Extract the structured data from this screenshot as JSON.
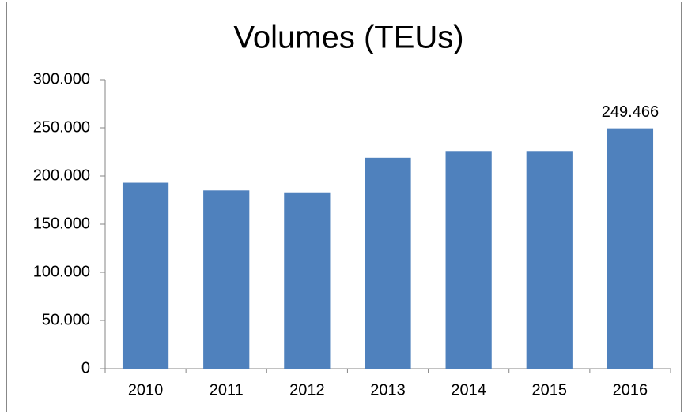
{
  "chart_data": {
    "type": "bar",
    "title": "Volumes (TEUs)",
    "categories": [
      "2010",
      "2011",
      "2012",
      "2013",
      "2014",
      "2015",
      "2016"
    ],
    "values": [
      193000,
      185000,
      183000,
      219000,
      226000,
      226000,
      249466
    ],
    "value_labels": [
      null,
      null,
      null,
      null,
      null,
      null,
      "249.466"
    ],
    "color": "#4f81bd",
    "ylim": [
      0,
      300000
    ],
    "yticks": [
      0,
      {
        "value": 50000,
        "label": "50.000"
      },
      {
        "value": 100000,
        "label": "100.000"
      },
      {
        "value": 150000,
        "label": "150.000"
      },
      {
        "value": 200000,
        "label": "200.000"
      },
      {
        "value": 250000,
        "label": "250.000"
      },
      {
        "value": 300000,
        "label": "300.000"
      }
    ],
    "grid": false
  }
}
